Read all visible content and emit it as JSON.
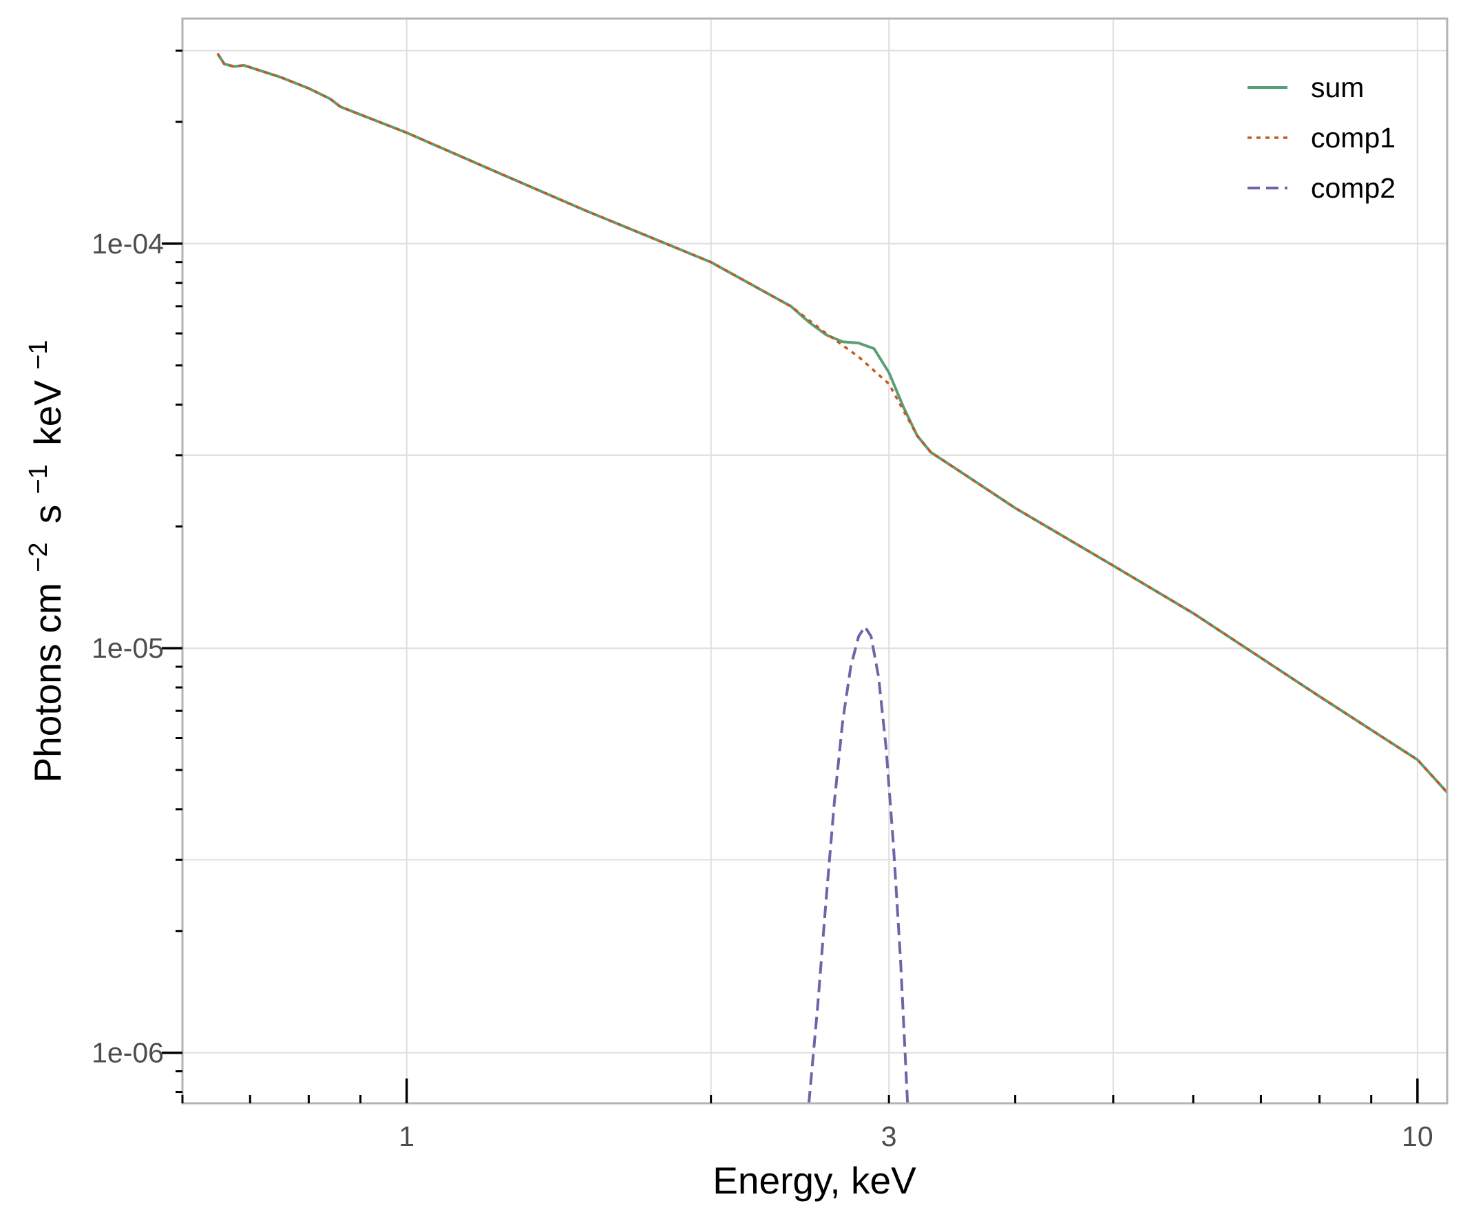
{
  "chart_data": {
    "type": "line",
    "title": "",
    "xlabel": "Energy, keV",
    "ylabel_parts": {
      "base1": "Photons cm",
      "exp1": "−2",
      "base2": "s",
      "exp2": "−1",
      "base3": "keV",
      "exp3": "−1"
    },
    "xscale": "log",
    "yscale": "log",
    "xlim": [
      0.6,
      10.7
    ],
    "ylim": [
      7.5e-07,
      0.00036
    ],
    "x_ticks": [
      {
        "value": 1,
        "label": "1"
      },
      {
        "value": 3,
        "label": "3"
      },
      {
        "value": 10,
        "label": "10"
      }
    ],
    "y_ticks": [
      {
        "value": 1e-06,
        "label": "1e-06"
      },
      {
        "value": 1e-05,
        "label": "1e-05"
      },
      {
        "value": 0.0001,
        "label": "1e-04"
      }
    ],
    "grid": true,
    "legend_position": "top-right",
    "series": [
      {
        "name": "sum",
        "label": "sum",
        "color": "#5a9e79",
        "dash": "solid",
        "points": [
          [
            0.65,
            0.000295
          ],
          [
            0.66,
            0.000278
          ],
          [
            0.675,
            0.000274
          ],
          [
            0.69,
            0.000276
          ],
          [
            0.75,
            0.000258
          ],
          [
            0.8,
            0.000242
          ],
          [
            0.84,
            0.000228
          ],
          [
            0.86,
            0.000218
          ],
          [
            1.0,
            0.000188
          ],
          [
            1.2,
            0.000154
          ],
          [
            1.5,
            0.000121
          ],
          [
            2.0,
            9e-05
          ],
          [
            2.4,
            7e-05
          ],
          [
            2.5,
            6.4e-05
          ],
          [
            2.6,
            5.95e-05
          ],
          [
            2.7,
            5.72e-05
          ],
          [
            2.8,
            5.68e-05
          ],
          [
            2.9,
            5.5e-05
          ],
          [
            3.0,
            4.8e-05
          ],
          [
            3.1,
            3.95e-05
          ],
          [
            3.2,
            3.35e-05
          ],
          [
            3.3,
            3.05e-05
          ],
          [
            3.5,
            2.77e-05
          ],
          [
            4.0,
            2.22e-05
          ],
          [
            5.0,
            1.6e-05
          ],
          [
            6.0,
            1.22e-05
          ],
          [
            8.0,
            7.6e-06
          ],
          [
            10.0,
            5.3e-06
          ],
          [
            10.7,
            4.4e-06
          ]
        ]
      },
      {
        "name": "comp1",
        "label": "comp1",
        "color": "#c9581a",
        "dash": "dotted",
        "points": [
          [
            0.65,
            0.000295
          ],
          [
            0.66,
            0.000278
          ],
          [
            0.675,
            0.000274
          ],
          [
            0.69,
            0.000276
          ],
          [
            0.75,
            0.000258
          ],
          [
            0.8,
            0.000242
          ],
          [
            0.84,
            0.000228
          ],
          [
            0.86,
            0.000218
          ],
          [
            1.0,
            0.000188
          ],
          [
            1.2,
            0.000154
          ],
          [
            1.5,
            0.000121
          ],
          [
            2.0,
            9e-05
          ],
          [
            2.4,
            7e-05
          ],
          [
            2.6,
            6e-05
          ],
          [
            2.8,
            5.25e-05
          ],
          [
            3.0,
            4.5e-05
          ],
          [
            3.2,
            3.35e-05
          ],
          [
            3.3,
            3.05e-05
          ],
          [
            3.5,
            2.77e-05
          ],
          [
            4.0,
            2.22e-05
          ],
          [
            5.0,
            1.6e-05
          ],
          [
            6.0,
            1.22e-05
          ],
          [
            8.0,
            7.6e-06
          ],
          [
            10.0,
            5.3e-06
          ],
          [
            10.7,
            4.4e-06
          ]
        ]
      },
      {
        "name": "comp2",
        "label": "comp2",
        "color": "#6c66a8",
        "dash": "dashed",
        "points": [
          [
            2.5,
            7.5e-07
          ],
          [
            2.55,
            1.3e-06
          ],
          [
            2.6,
            2.4e-06
          ],
          [
            2.65,
            4.2e-06
          ],
          [
            2.7,
            6.6e-06
          ],
          [
            2.75,
            9e-06
          ],
          [
            2.8,
            1.07e-05
          ],
          [
            2.84,
            1.13e-05
          ],
          [
            2.88,
            1.07e-05
          ],
          [
            2.93,
            8.5e-06
          ],
          [
            2.98,
            5.7e-06
          ],
          [
            3.03,
            3.3e-06
          ],
          [
            3.08,
            1.7e-06
          ],
          [
            3.13,
            7.5e-07
          ]
        ]
      }
    ]
  }
}
